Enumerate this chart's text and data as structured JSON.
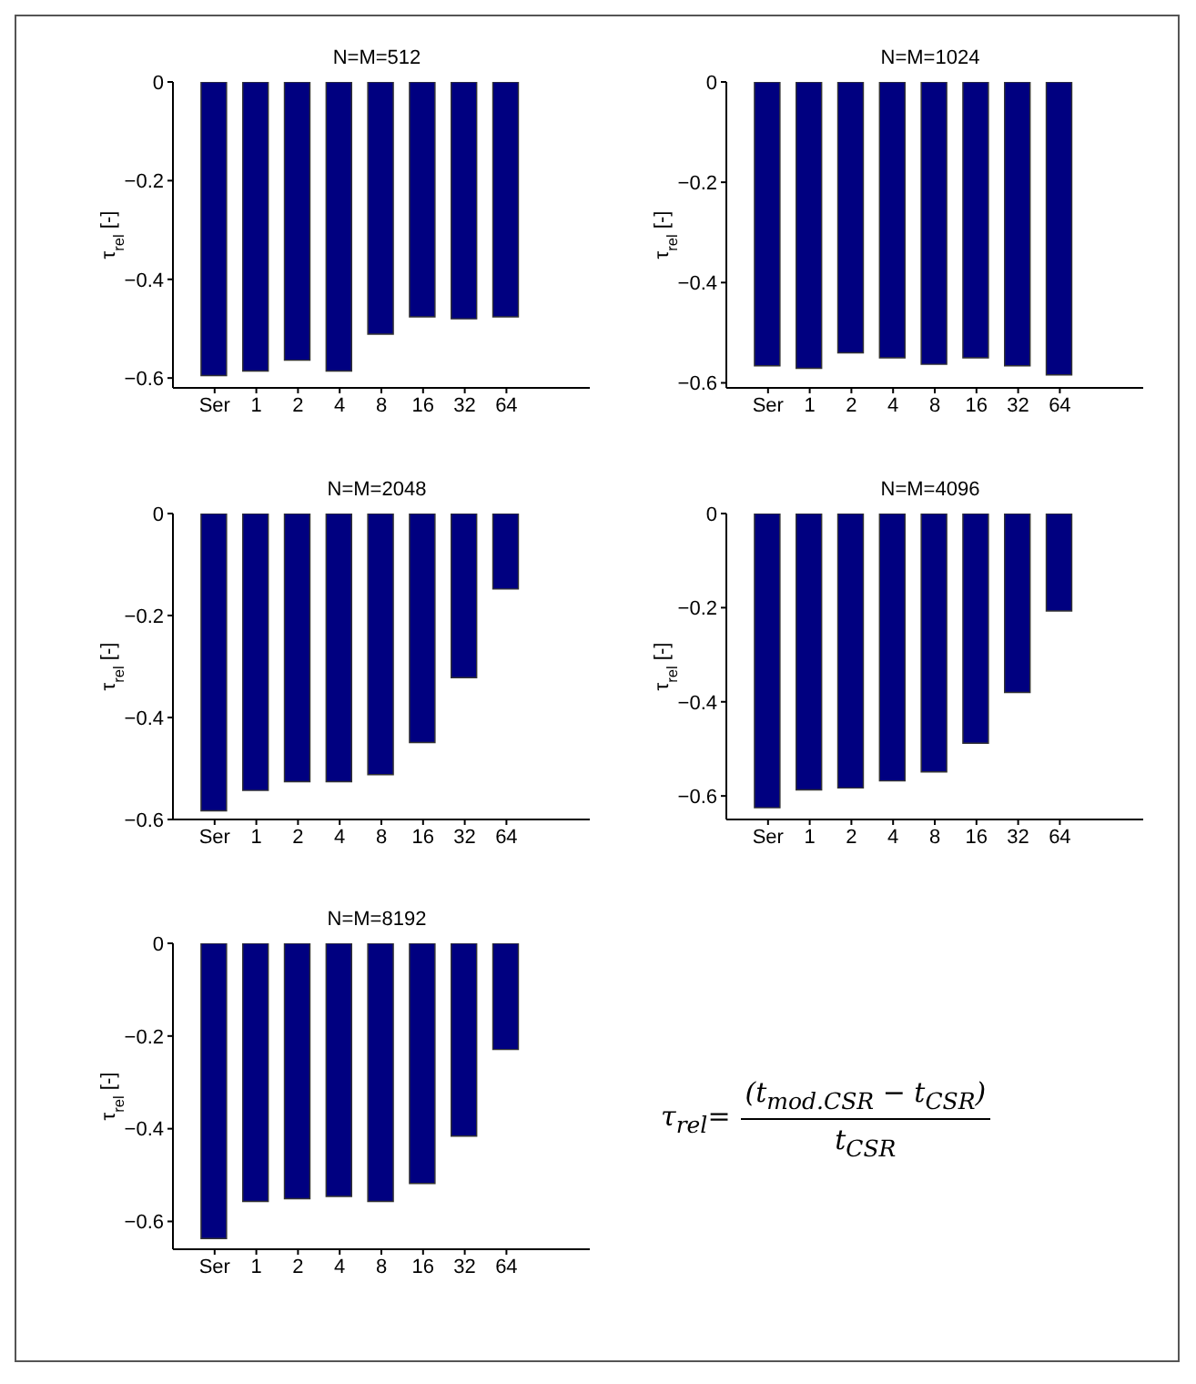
{
  "chart_data": [
    {
      "type": "bar",
      "title": "N=M=512",
      "ylabel": "τ$_{rel}$  [-]",
      "categories": [
        "Ser",
        "1",
        "2",
        "4",
        "8",
        "16",
        "32",
        "64"
      ],
      "color": "#000080",
      "ylim": [
        -0.62,
        0
      ],
      "yticks": [
        -0.6,
        -0.4,
        -0.2,
        0
      ],
      "values": [
        -0.595,
        -0.586,
        -0.564,
        -0.586,
        -0.511,
        -0.476,
        -0.48,
        -0.476
      ]
    },
    {
      "type": "bar",
      "title": "N=M=1024",
      "ylabel": "τ$_{rel}$  [-]",
      "categories": [
        "Ser",
        "1",
        "2",
        "4",
        "8",
        "16",
        "32",
        "64"
      ],
      "color": "#000080",
      "ylim": [
        -0.61,
        0
      ],
      "yticks": [
        -0.6,
        -0.4,
        -0.2,
        0
      ],
      "values": [
        -0.566,
        -0.571,
        -0.54,
        -0.55,
        -0.563,
        -0.55,
        -0.566,
        -0.584
      ]
    },
    {
      "type": "bar",
      "title": "N=M=2048",
      "ylabel": "τ$_{rel}$  [-]",
      "categories": [
        "Ser",
        "1",
        "2",
        "4",
        "8",
        "16",
        "32",
        "64"
      ],
      "color": "#000080",
      "ylim": [
        -0.6,
        0
      ],
      "yticks": [
        -0.6,
        -0.4,
        -0.2,
        0
      ],
      "values": [
        -0.583,
        -0.543,
        -0.526,
        -0.526,
        -0.512,
        -0.449,
        -0.322,
        -0.148
      ]
    },
    {
      "type": "bar",
      "title": "N=M=4096",
      "ylabel": "τ$_{rel}$  [-]",
      "categories": [
        "Ser",
        "1",
        "2",
        "4",
        "8",
        "16",
        "32",
        "64"
      ],
      "color": "#000080",
      "ylim": [
        -0.65,
        0
      ],
      "yticks": [
        -0.6,
        -0.4,
        -0.2,
        0
      ],
      "values": [
        -0.625,
        -0.587,
        -0.583,
        -0.568,
        -0.549,
        -0.488,
        -0.38,
        -0.207
      ]
    },
    {
      "type": "bar",
      "title": "N=M=8192",
      "ylabel": "τ$_{rel}$  [-]",
      "categories": [
        "Ser",
        "1",
        "2",
        "4",
        "8",
        "16",
        "32",
        "64"
      ],
      "color": "#000080",
      "ylim": [
        -0.66,
        0
      ],
      "yticks": [
        -0.6,
        -0.4,
        -0.2,
        0
      ],
      "values": [
        -0.637,
        -0.557,
        -0.551,
        -0.546,
        -0.557,
        -0.518,
        -0.416,
        -0.229
      ]
    },
    {
      "type": "other",
      "annotations": [
        "τ$_{rel}$=",
        "(t$_{mod.CSR}$ −  t$_{CSR}$)",
        "t$_{CSR}$"
      ]
    }
  ]
}
